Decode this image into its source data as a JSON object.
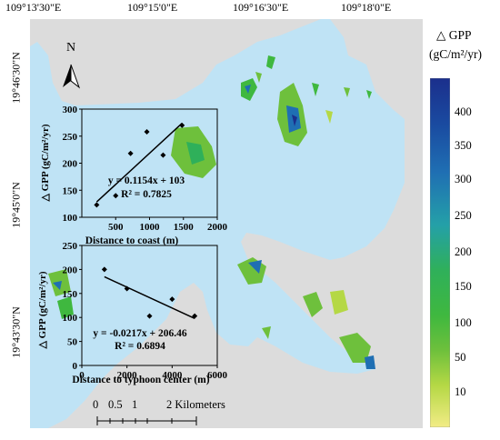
{
  "map": {
    "top_labels": [
      "109°13'30\"E",
      "109°15'0\"E",
      "109°16'30\"E",
      "109°18'0\"E"
    ],
    "side_labels": [
      "19°46'30\"N",
      "19°45'0\"N",
      "19°43'30\"N"
    ],
    "north_label": "N",
    "scale_bar": {
      "ticks": [
        "0",
        "0.5",
        "1",
        "2 Kilometers"
      ]
    },
    "colors": {
      "land": "#dcdcdc",
      "water": "#bfe3f5",
      "inset_bg": "#bfe3f5"
    }
  },
  "legend": {
    "title": "△ GPP",
    "unit": "(gC/m²/yr)",
    "labels": [
      "400",
      "350",
      "300",
      "250",
      "200",
      "150",
      "100",
      "50",
      "10"
    ],
    "colors": [
      "#1b2f8c",
      "#1a4aa0",
      "#1f6fb3",
      "#24a0a8",
      "#2fb05a",
      "#3fb83f",
      "#6ec03c",
      "#b5d845",
      "#f2ec86"
    ]
  },
  "chart_data": [
    {
      "type": "scatter",
      "xlabel": "Distance to coast (m)",
      "ylabel": "△ GPP (gC/m²/yr)",
      "xticks": [
        "500",
        "1000",
        "1500",
        "2000"
      ],
      "yticks": [
        "100",
        "150",
        "200",
        "250",
        "300"
      ],
      "xlim": [
        0,
        2000
      ],
      "ylim": [
        100,
        300
      ],
      "points": [
        [
          220,
          123
        ],
        [
          500,
          140
        ],
        [
          720,
          218
        ],
        [
          960,
          258
        ],
        [
          1200,
          215
        ],
        [
          1480,
          270
        ]
      ],
      "fit": {
        "slope": 0.1154,
        "intercept": 103
      },
      "equation": "y = 0.1154x + 103",
      "r2": "R² = 0.7825"
    },
    {
      "type": "scatter",
      "xlabel": "Distance to typhoon center (m)",
      "ylabel": "△ GPP (gC/m²/yr)",
      "xticks": [
        "0",
        "2000",
        "4000",
        "6000"
      ],
      "yticks": [
        "0",
        "50",
        "100",
        "150",
        "200",
        "250"
      ],
      "xlim": [
        0,
        6000
      ],
      "ylim": [
        0,
        250
      ],
      "points": [
        [
          1000,
          200
        ],
        [
          2000,
          160
        ],
        [
          3000,
          103
        ],
        [
          4000,
          138
        ],
        [
          5000,
          103
        ]
      ],
      "fit": {
        "slope": -0.0217,
        "intercept": 206.46
      },
      "equation": "y = -0.0217x + 206.46",
      "r2": "R² = 0.6894"
    }
  ]
}
